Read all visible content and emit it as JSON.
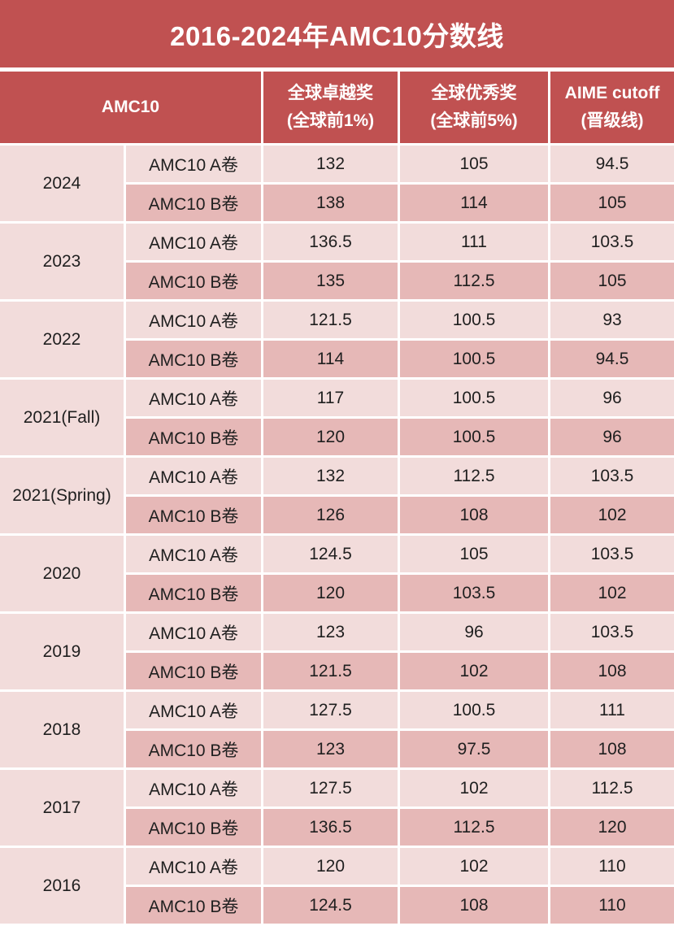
{
  "title": "2016-2024年AMC10分数线",
  "colors": {
    "header_red": "#C05151",
    "row_light": "#F2DCDB",
    "row_dark": "#E6B8B7",
    "text": "#1F1F1F",
    "header_text": "#FFFFFF",
    "background": "#FFFFFF"
  },
  "chart_data": {
    "type": "table",
    "title": "2016-2024年AMC10分数线",
    "header": {
      "amc10": "AMC10",
      "top1_line1": "全球卓越奖",
      "top1_line2": "(全球前1%)",
      "top5_line1": "全球优秀奖",
      "top5_line2": "(全球前5%)",
      "aime_line1": "AIME cutoff",
      "aime_line2": "(晋级线)"
    },
    "groups": [
      {
        "year": "2024",
        "rows": [
          {
            "exam": "AMC10 A卷",
            "top1": "132",
            "top5": "105",
            "aime": "94.5"
          },
          {
            "exam": "AMC10 B卷",
            "top1": "138",
            "top5": "114",
            "aime": "105"
          }
        ]
      },
      {
        "year": "2023",
        "rows": [
          {
            "exam": "AMC10 A卷",
            "top1": "136.5",
            "top5": "111",
            "aime": "103.5"
          },
          {
            "exam": "AMC10 B卷",
            "top1": "135",
            "top5": "112.5",
            "aime": "105"
          }
        ]
      },
      {
        "year": "2022",
        "rows": [
          {
            "exam": "AMC10 A卷",
            "top1": "121.5",
            "top5": "100.5",
            "aime": "93"
          },
          {
            "exam": "AMC10 B卷",
            "top1": "114",
            "top5": "100.5",
            "aime": "94.5"
          }
        ]
      },
      {
        "year": "2021(Fall)",
        "rows": [
          {
            "exam": "AMC10 A卷",
            "top1": "117",
            "top5": "100.5",
            "aime": "96"
          },
          {
            "exam": "AMC10 B卷",
            "top1": "120",
            "top5": "100.5",
            "aime": "96"
          }
        ]
      },
      {
        "year": "2021(Spring)",
        "rows": [
          {
            "exam": "AMC10 A卷",
            "top1": "132",
            "top5": "112.5",
            "aime": "103.5"
          },
          {
            "exam": "AMC10 B卷",
            "top1": "126",
            "top5": "108",
            "aime": "102"
          }
        ]
      },
      {
        "year": "2020",
        "rows": [
          {
            "exam": "AMC10 A卷",
            "top1": "124.5",
            "top5": "105",
            "aime": "103.5"
          },
          {
            "exam": "AMC10 B卷",
            "top1": "120",
            "top5": "103.5",
            "aime": "102"
          }
        ]
      },
      {
        "year": "2019",
        "rows": [
          {
            "exam": "AMC10 A卷",
            "top1": "123",
            "top5": "96",
            "aime": "103.5"
          },
          {
            "exam": "AMC10 B卷",
            "top1": "121.5",
            "top5": "102",
            "aime": "108"
          }
        ]
      },
      {
        "year": "2018",
        "rows": [
          {
            "exam": "AMC10 A卷",
            "top1": "127.5",
            "top5": "100.5",
            "aime": "111"
          },
          {
            "exam": "AMC10 B卷",
            "top1": "123",
            "top5": "97.5",
            "aime": "108"
          }
        ]
      },
      {
        "year": "2017",
        "rows": [
          {
            "exam": "AMC10 A卷",
            "top1": "127.5",
            "top5": "102",
            "aime": "112.5"
          },
          {
            "exam": "AMC10 B卷",
            "top1": "136.5",
            "top5": "112.5",
            "aime": "120"
          }
        ]
      },
      {
        "year": "2016",
        "rows": [
          {
            "exam": "AMC10 A卷",
            "top1": "120",
            "top5": "102",
            "aime": "110"
          },
          {
            "exam": "AMC10 B卷",
            "top1": "124.5",
            "top5": "108",
            "aime": "110"
          }
        ]
      }
    ]
  }
}
